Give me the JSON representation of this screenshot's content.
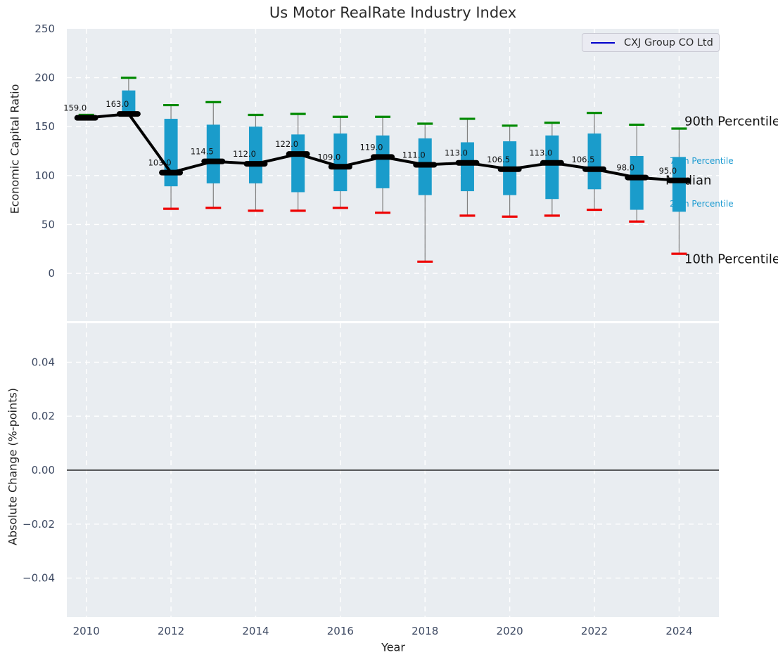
{
  "title": "Us Motor RealRate Industry Index",
  "legend": {
    "label": "CXJ Group CO Ltd",
    "line_color": "#0000cc"
  },
  "axes": {
    "top": {
      "ylabel": "Economic Capital Ratio"
    },
    "bottom": {
      "ylabel": "Absolute Change (%-points)",
      "xlabel": "Year"
    }
  },
  "percentile_labels": {
    "p90": "90th Percentile",
    "p75": "75th Percentile",
    "median": "Median",
    "p25": "25th Percentile",
    "p10": "10th Percentile"
  },
  "chart_data": {
    "type": "boxplot",
    "title": "Us Motor RealRate Industry Index",
    "xlabel": "Year",
    "ylabel": "Economic Capital Ratio",
    "ylabel_secondary": "Absolute Change (%-points)",
    "legend_entries": [
      "CXJ Group CO Ltd"
    ],
    "x": [
      2010,
      2011,
      2012,
      2013,
      2014,
      2015,
      2016,
      2017,
      2018,
      2019,
      2020,
      2021,
      2022,
      2023,
      2024
    ],
    "series": [
      {
        "name": "Median",
        "values": [
          159,
          163,
          103,
          114.5,
          112,
          122,
          109,
          119,
          111,
          113,
          106.5,
          113,
          106.5,
          98,
          95
        ]
      },
      {
        "name": "75th Percentile",
        "values": [
          160,
          187,
          158,
          152,
          150,
          142,
          143,
          141,
          138,
          134,
          135,
          141,
          143,
          120,
          119
        ]
      },
      {
        "name": "25th Percentile",
        "values": [
          158,
          163,
          89,
          92,
          92,
          83,
          84,
          87,
          80,
          84,
          80,
          76,
          86,
          65,
          63
        ]
      },
      {
        "name": "90th Percentile",
        "values": [
          162,
          200,
          172,
          175,
          162,
          163,
          160,
          160,
          153,
          158,
          151,
          154,
          164,
          152,
          148
        ]
      },
      {
        "name": "10th Percentile",
        "values": [
          158,
          163,
          66,
          67,
          64,
          64,
          67,
          62,
          12,
          59,
          58,
          59,
          65,
          53,
          20
        ]
      }
    ],
    "median_labels": [
      "159.0",
      "163.0",
      "103.0",
      "114.5",
      "112.0",
      "122.0",
      "109.0",
      "119.0",
      "111.0",
      "113.0",
      "106.5",
      "113.0",
      "106.5",
      "98.0",
      "95.0"
    ],
    "top_axis": {
      "ylim": [
        -49,
        250
      ],
      "yticks": [
        250,
        200,
        150,
        100,
        50,
        0
      ],
      "ytick_labels": [
        "250",
        "200",
        "150",
        "100",
        "50",
        "0"
      ],
      "grid": true
    },
    "bottom_axis": {
      "ylim": [
        -0.056,
        0.056
      ],
      "yticks": [
        0.04,
        0.02,
        0,
        -0.02,
        -0.04
      ],
      "ytick_labels": [
        "0.04",
        "0.02",
        "0.00",
        "−0.02",
        "−0.04"
      ],
      "zero_line": 0,
      "grid": true
    },
    "xticks": [
      2010,
      2012,
      2014,
      2016,
      2018,
      2020,
      2022,
      2024
    ],
    "xtick_labels": [
      "2010",
      "2012",
      "2014",
      "2016",
      "2018",
      "2020",
      "2022",
      "2024"
    ],
    "xlim": [
      2009.54,
      2024.94
    ],
    "legend_position": "upper right",
    "colors": {
      "box": "#1a9ccb",
      "p90_cap": "#008a00",
      "p10_cap": "#ee0000",
      "median_line": "#000000",
      "company_line": "#0000cc",
      "whisker": "#808080",
      "panel_bg": "#e9edf1",
      "grid": "#ffffff",
      "tick_label": "#3e4a63",
      "annotation_blue": "#1d9bd1",
      "annotation_black": "#111111"
    }
  }
}
